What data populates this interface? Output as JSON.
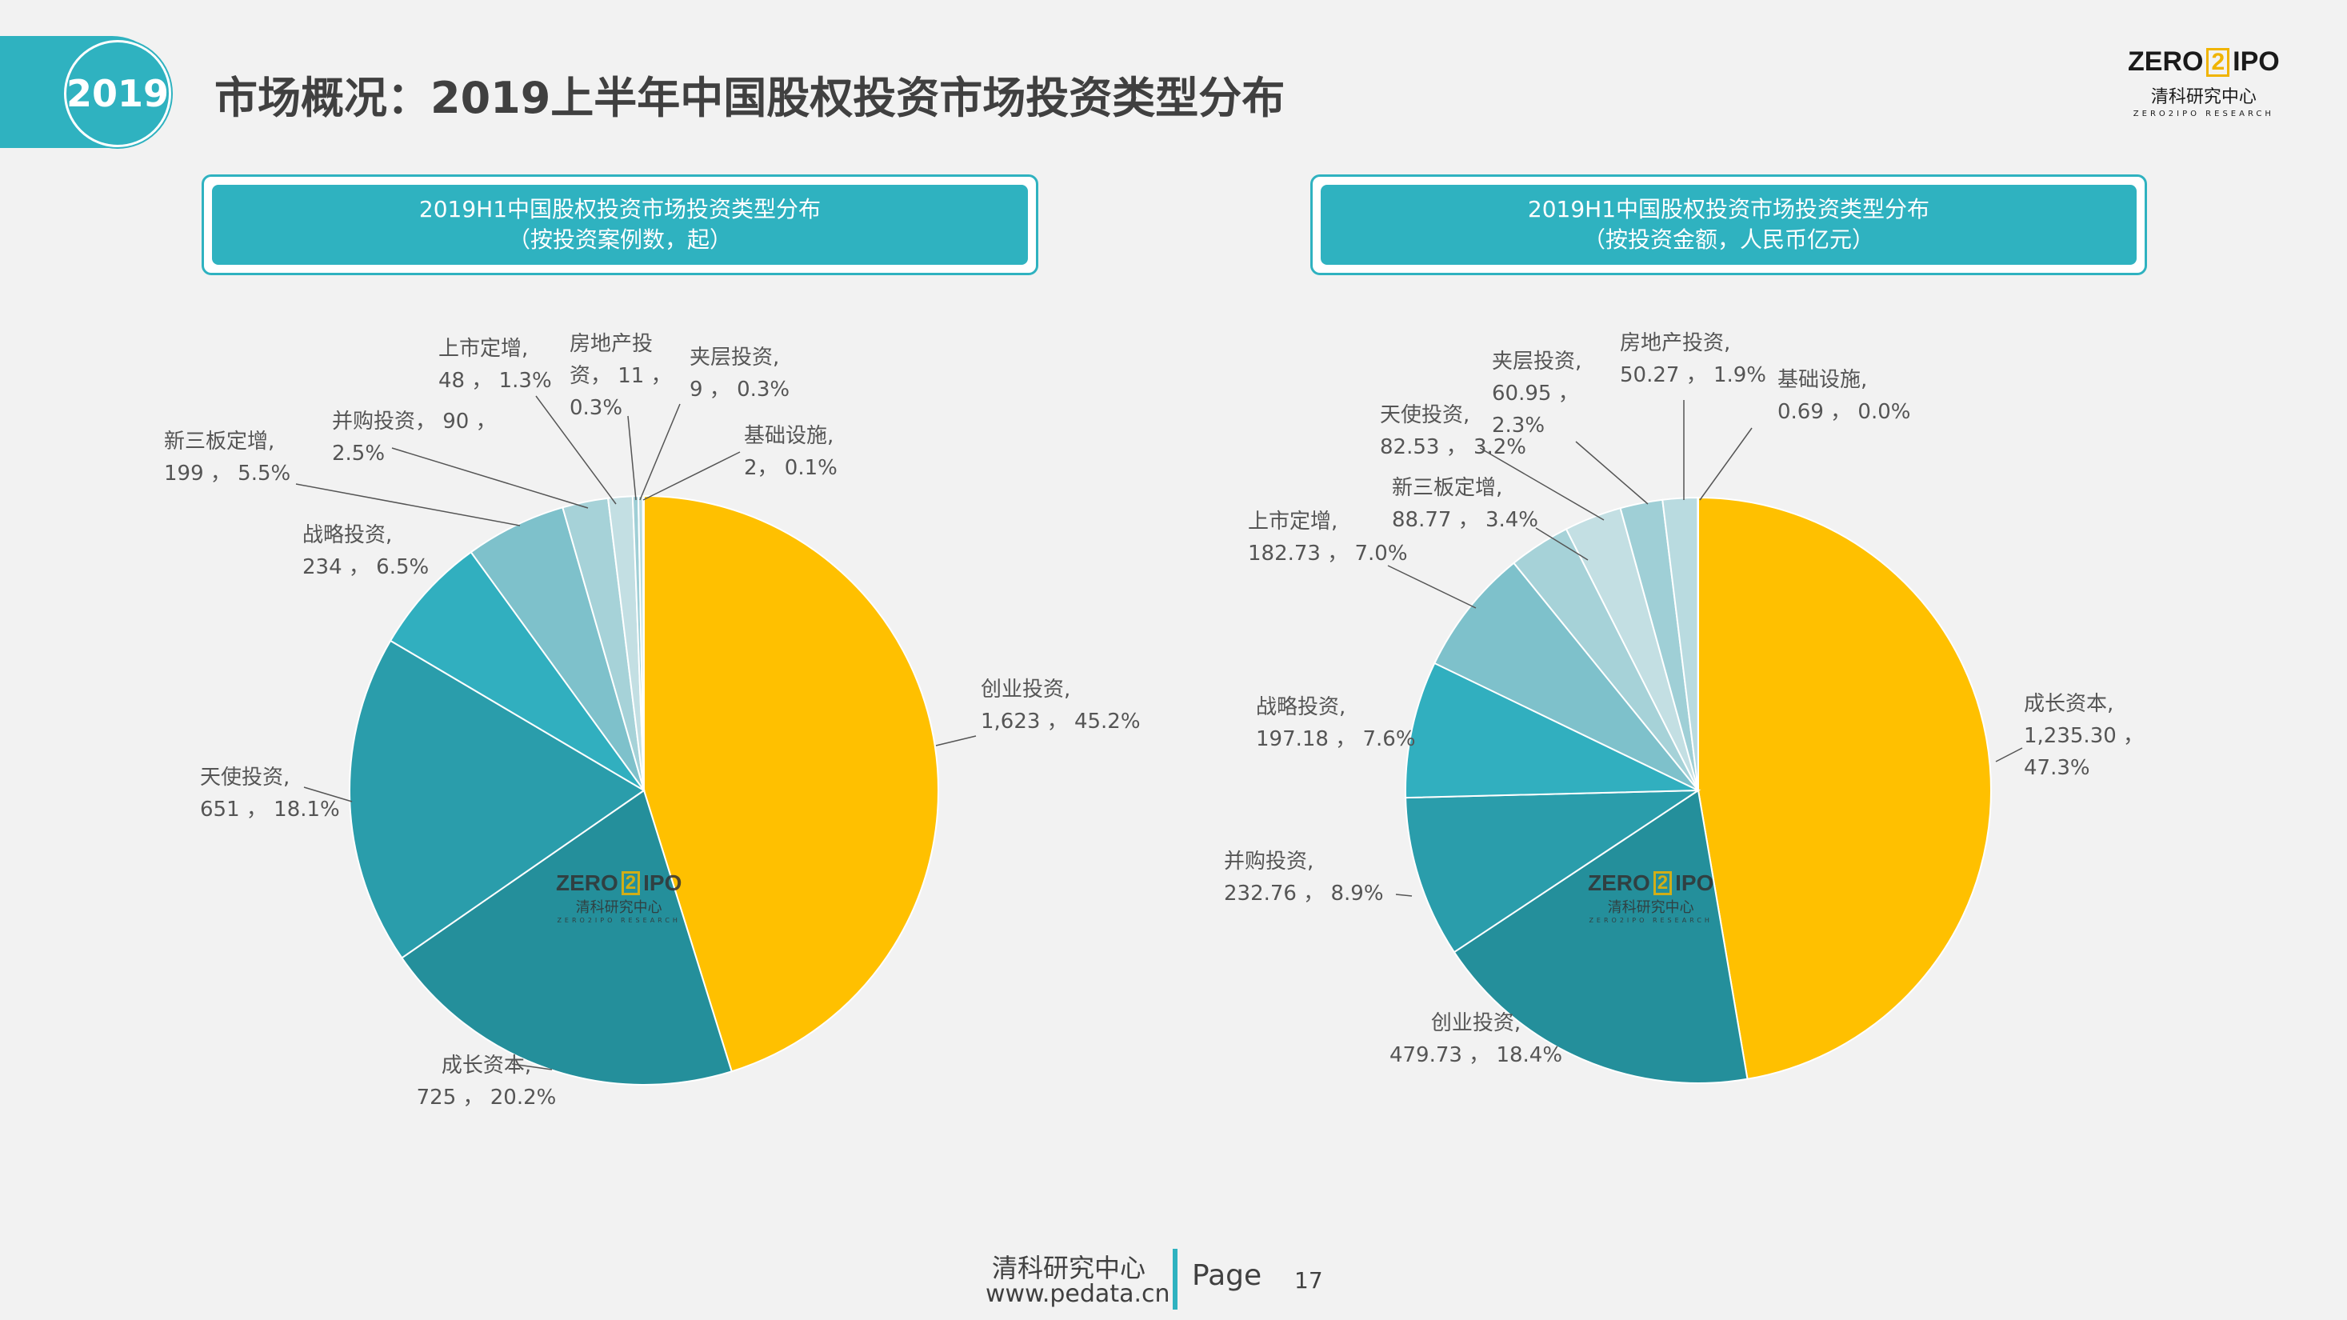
{
  "header": {
    "year_badge": "2019",
    "title": "市场概况：2019上半年中国股权投资市场投资类型分布"
  },
  "brand_logo": {
    "left": "ZERO",
    "digit": "2",
    "right": "IPO",
    "cn": "清科研究中心",
    "en": "ZERO2IPO RESEARCH"
  },
  "colors": {
    "accent": "#2fb2c0",
    "highlight": "#ffc000"
  },
  "panels": [
    {
      "title_line1": "2019H1中国股权投资市场投资类型分布",
      "title_line2": "（按投资案例数，起）"
    },
    {
      "title_line1": "2019H1中国股权投资市场投资类型分布",
      "title_line2": "（按投资金额，人民币亿元）"
    }
  ],
  "chart_data": [
    {
      "type": "pie",
      "title": "2019H1中国股权投资市场投资类型分布（按投资案例数，起）",
      "slices": [
        {
          "label": "创业投资",
          "value": 1623,
          "value_text": "1,623",
          "percent": "45.2%",
          "color": "#ffc000"
        },
        {
          "label": "成长资本",
          "value": 725,
          "value_text": "725",
          "percent": "20.2%",
          "color": "#248f9b"
        },
        {
          "label": "天使投资",
          "value": 651,
          "value_text": "651",
          "percent": "18.1%",
          "color": "#2a9dab"
        },
        {
          "label": "战略投资",
          "value": 234,
          "value_text": "234",
          "percent": "6.5%",
          "color": "#31afbf"
        },
        {
          "label": "新三板定增",
          "value": 199,
          "value_text": "199",
          "percent": "5.5%",
          "color": "#7ec1cb"
        },
        {
          "label": "并购投资",
          "value": 90,
          "value_text": "90",
          "percent": "2.5%",
          "color": "#a6d2d8"
        },
        {
          "label": "上市定增",
          "value": 48,
          "value_text": "48",
          "percent": "1.3%",
          "color": "#c3dfe3"
        },
        {
          "label": "房地产投资",
          "value": 11,
          "value_text": "11",
          "percent": "0.3%",
          "color": "#9fcfd6"
        },
        {
          "label": "夹层投资",
          "value": 9,
          "value_text": "9",
          "percent": "0.3%",
          "color": "#b9dbe0"
        },
        {
          "label": "基础设施",
          "value": 2,
          "value_text": "2",
          "percent": "0.1%",
          "color": "#d4e8eb"
        }
      ],
      "labels": [
        {
          "lines": [
            "创业投资,",
            "1,623 ， 45.2%"
          ]
        },
        {
          "lines": [
            "成长资本,",
            "725 ， 20.2%"
          ]
        },
        {
          "lines": [
            "天使投资,",
            "651 ， 18.1%"
          ]
        },
        {
          "lines": [
            "战略投资,",
            "234 ， 6.5%"
          ]
        },
        {
          "lines": [
            "新三板定增,",
            "199 ， 5.5%"
          ]
        },
        {
          "lines": [
            "并购投资， 90 ，",
            "2.5%"
          ]
        },
        {
          "lines": [
            "上市定增,",
            "48 ， 1.3%"
          ]
        },
        {
          "lines": [
            "房地产投",
            "资， 11 ，",
            "0.3%"
          ]
        },
        {
          "lines": [
            "夹层投资,",
            "9 ， 0.3%"
          ]
        },
        {
          "lines": [
            "基础设施,",
            "2， 0.1%"
          ]
        }
      ]
    },
    {
      "type": "pie",
      "title": "2019H1中国股权投资市场投资类型分布（按投资金额，人民币亿元）",
      "slices": [
        {
          "label": "成长资本",
          "value": 1235.3,
          "value_text": "1,235.30",
          "percent": "47.3%",
          "color": "#ffc000"
        },
        {
          "label": "创业投资",
          "value": 479.73,
          "value_text": "479.73",
          "percent": "18.4%",
          "color": "#248f9b"
        },
        {
          "label": "并购投资",
          "value": 232.76,
          "value_text": "232.76",
          "percent": "8.9%",
          "color": "#2a9dab"
        },
        {
          "label": "战略投资",
          "value": 197.18,
          "value_text": "197.18",
          "percent": "7.6%",
          "color": "#31afbf"
        },
        {
          "label": "上市定增",
          "value": 182.73,
          "value_text": "182.73",
          "percent": "7.0%",
          "color": "#7ec1cb"
        },
        {
          "label": "新三板定增",
          "value": 88.77,
          "value_text": "88.77",
          "percent": "3.4%",
          "color": "#a6d2d8"
        },
        {
          "label": "天使投资",
          "value": 82.53,
          "value_text": "82.53",
          "percent": "3.2%",
          "color": "#c3dfe3"
        },
        {
          "label": "夹层投资",
          "value": 60.95,
          "value_text": "60.95",
          "percent": "2.3%",
          "color": "#9fcfd6"
        },
        {
          "label": "房地产投资",
          "value": 50.27,
          "value_text": "50.27",
          "percent": "1.9%",
          "color": "#b9dbe0"
        },
        {
          "label": "基础设施",
          "value": 0.69,
          "value_text": "0.69",
          "percent": "0.0%",
          "color": "#d4e8eb"
        }
      ],
      "labels": [
        {
          "lines": [
            "成长资本,",
            "1,235.30 ，",
            "47.3%"
          ]
        },
        {
          "lines": [
            "创业投资,",
            "479.73 ， 18.4%"
          ]
        },
        {
          "lines": [
            "并购投资,",
            "232.76 ， 8.9%"
          ]
        },
        {
          "lines": [
            "战略投资,",
            "197.18 ， 7.6%"
          ]
        },
        {
          "lines": [
            "上市定增,",
            "182.73 ， 7.0%"
          ]
        },
        {
          "lines": [
            "新三板定增,",
            "88.77 ， 3.4%"
          ]
        },
        {
          "lines": [
            "天使投资,",
            "82.53 ， 3.2%"
          ]
        },
        {
          "lines": [
            "夹层投资,",
            "60.95 ，",
            "2.3%"
          ]
        },
        {
          "lines": [
            "房地产投资,",
            "50.27 ， 1.9%"
          ]
        },
        {
          "lines": [
            "基础设施,",
            "0.69 ， 0.0%"
          ]
        }
      ]
    }
  ],
  "footer": {
    "org": "清科研究中心",
    "website": "www.pedata.cn",
    "page_label": "Page",
    "page_number": "17"
  }
}
